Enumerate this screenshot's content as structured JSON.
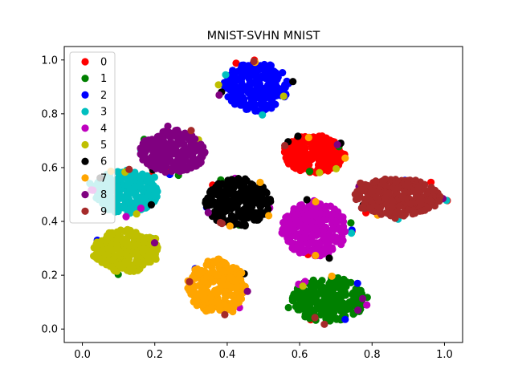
{
  "chart_data": {
    "type": "scatter",
    "title": "MNIST-SVHN MNIST",
    "xlabel": "",
    "ylabel": "",
    "xlim": [
      -0.05,
      1.05
    ],
    "ylim": [
      -0.05,
      1.05
    ],
    "xticks": [
      "0.0",
      "0.2",
      "0.4",
      "0.6",
      "0.8",
      "1.0"
    ],
    "yticks": [
      "0.0",
      "0.2",
      "0.4",
      "0.6",
      "0.8",
      "1.0"
    ],
    "grid": false,
    "legend_position": "top-left",
    "series": [
      {
        "name": "0",
        "color": "#ff0000",
        "cluster": {
          "cx": 0.64,
          "cy": 0.65,
          "rx": 0.085,
          "ry": 0.07
        }
      },
      {
        "name": "1",
        "color": "#008000",
        "cluster": {
          "cx": 0.68,
          "cy": 0.11,
          "rx": 0.1,
          "ry": 0.085
        }
      },
      {
        "name": "2",
        "color": "#0000ff",
        "cluster": {
          "cx": 0.48,
          "cy": 0.9,
          "rx": 0.09,
          "ry": 0.09
        }
      },
      {
        "name": "3",
        "color": "#00bfbf",
        "cluster": {
          "cx": 0.12,
          "cy": 0.51,
          "rx": 0.09,
          "ry": 0.08
        }
      },
      {
        "name": "4",
        "color": "#bf00bf",
        "cluster": {
          "cx": 0.64,
          "cy": 0.37,
          "rx": 0.09,
          "ry": 0.1
        }
      },
      {
        "name": "5",
        "color": "#bfbf00",
        "cluster": {
          "cx": 0.12,
          "cy": 0.29,
          "rx": 0.09,
          "ry": 0.08
        }
      },
      {
        "name": "6",
        "color": "#000000",
        "cluster": {
          "cx": 0.43,
          "cy": 0.47,
          "rx": 0.09,
          "ry": 0.09
        }
      },
      {
        "name": "7",
        "color": "#ffa500",
        "cluster": {
          "cx": 0.37,
          "cy": 0.16,
          "rx": 0.08,
          "ry": 0.1
        }
      },
      {
        "name": "8",
        "color": "#800080",
        "cluster": {
          "cx": 0.25,
          "cy": 0.66,
          "rx": 0.09,
          "ry": 0.08
        }
      },
      {
        "name": "9",
        "color": "#a52a2a",
        "cluster": {
          "cx": 0.87,
          "cy": 0.49,
          "rx": 0.12,
          "ry": 0.07
        }
      }
    ]
  }
}
